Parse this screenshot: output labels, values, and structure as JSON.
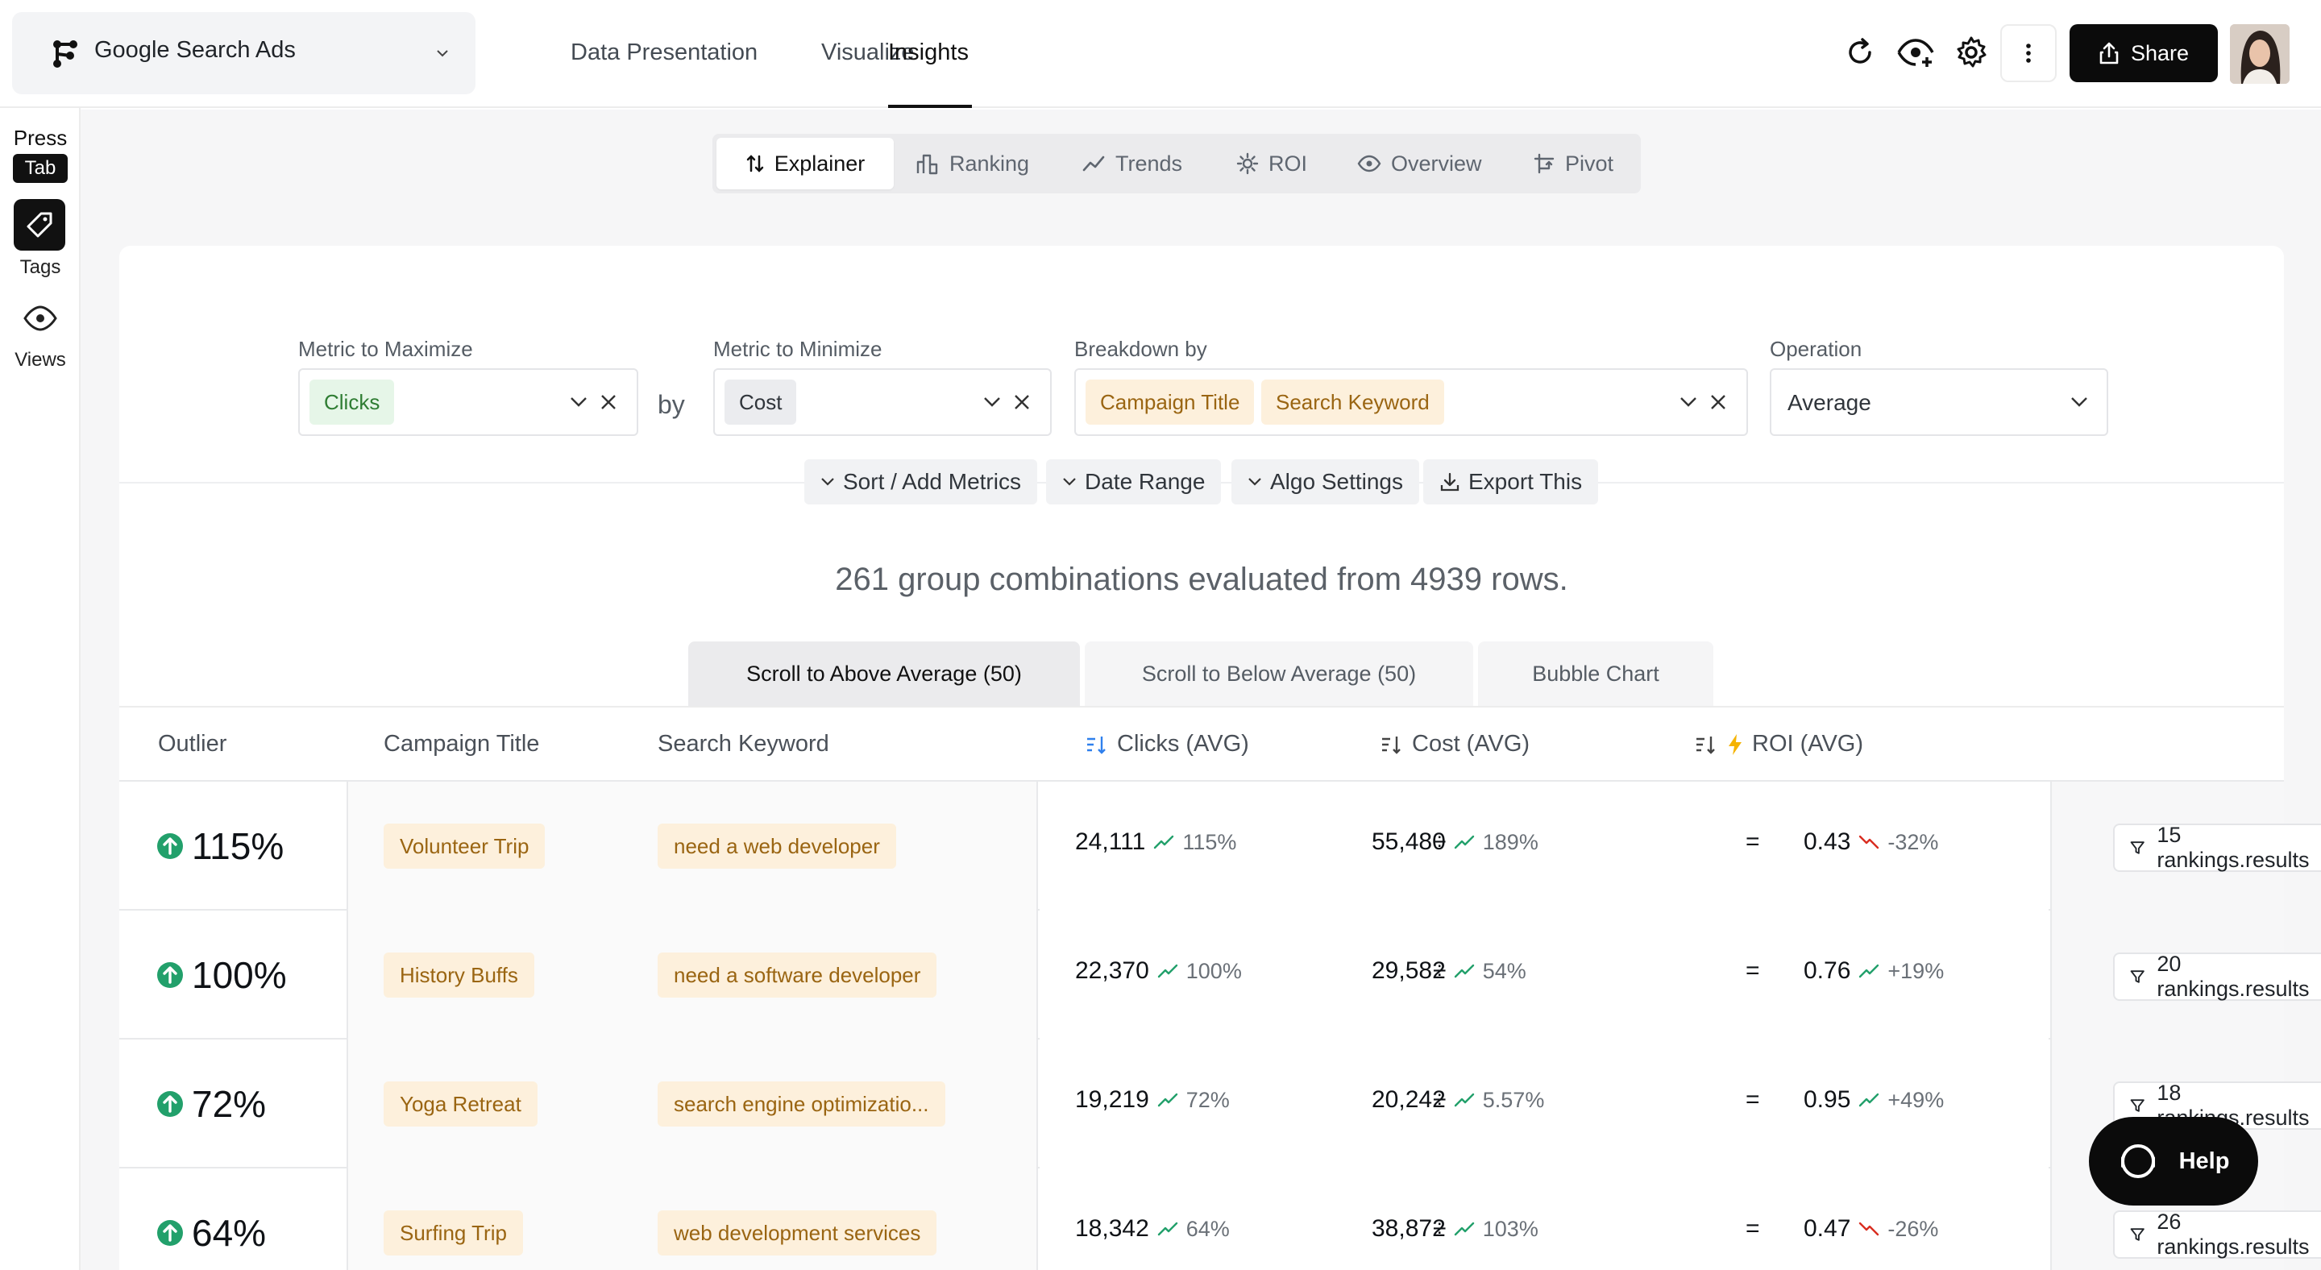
{
  "header": {
    "app_name": "Google Search Ads",
    "nav": [
      "Data Presentation",
      "Visualize",
      "Insights"
    ],
    "active_nav": "Insights",
    "share_label": "Share"
  },
  "rail": {
    "press_label": "Press",
    "tab_key": "Tab",
    "tags_label": "Tags",
    "views_label": "Views"
  },
  "subtabs": {
    "explainer": "Explainer",
    "ranking": "Ranking",
    "trends": "Trends",
    "roi": "ROI",
    "overview": "Overview",
    "pivot": "Pivot"
  },
  "filters": {
    "maximize_label": "Metric to Maximize",
    "maximize_value": "Clicks",
    "by_word": "by",
    "minimize_label": "Metric to Minimize",
    "minimize_value": "Cost",
    "breakdown_label": "Breakdown by",
    "breakdown_values": [
      "Campaign Title",
      "Search Keyword"
    ],
    "operation_label": "Operation",
    "operation_value": "Average"
  },
  "options": {
    "sort": "Sort / Add Metrics",
    "date": "Date Range",
    "algo": "Algo Settings",
    "export": "Export This"
  },
  "summary": "261 group combinations evaluated from 4939 rows.",
  "result_tabs": {
    "above": "Scroll to Above Average (50)",
    "below": "Scroll to Below Average (50)",
    "bubble": "Bubble Chart"
  },
  "table": {
    "headers": {
      "outlier": "Outlier",
      "campaign": "Campaign Title",
      "keyword": "Search Keyword",
      "clicks": "Clicks (AVG)",
      "cost": "Cost (AVG)",
      "roi": "ROI (AVG)"
    },
    "divide_symbol": "÷",
    "equals_symbol": "=",
    "rows": [
      {
        "outlier": "115%",
        "campaign": "Volunteer Trip",
        "keyword": "need a web developer",
        "clicks": "24,111",
        "clicks_pct": "115%",
        "cost": "55,480",
        "cost_pct": "189%",
        "roi": "0.43",
        "roi_pct": "-32%",
        "roi_trend": "down",
        "rankings": "15 rankings.results"
      },
      {
        "outlier": "100%",
        "campaign": "History Buffs",
        "keyword": "need a software developer",
        "clicks": "22,370",
        "clicks_pct": "100%",
        "cost": "29,582",
        "cost_pct": "54%",
        "roi": "0.76",
        "roi_pct": "+19%",
        "roi_trend": "up",
        "rankings": "20 rankings.results"
      },
      {
        "outlier": "72%",
        "campaign": "Yoga Retreat",
        "keyword": "search engine optimizatio...",
        "clicks": "19,219",
        "clicks_pct": "72%",
        "cost": "20,242",
        "cost_pct": "5.57%",
        "roi": "0.95",
        "roi_pct": "+49%",
        "roi_trend": "up",
        "rankings": "18 rankings.results"
      },
      {
        "outlier": "64%",
        "campaign": "Surfing Trip",
        "keyword": "web development services",
        "clicks": "18,342",
        "clicks_pct": "64%",
        "cost": "38,872",
        "cost_pct": "103%",
        "roi": "0.47",
        "roi_pct": "-26%",
        "roi_trend": "down",
        "rankings": "26 rankings.results"
      }
    ]
  },
  "help_label": "Help",
  "colors": {
    "up": "#22a06b",
    "down": "#d92d20",
    "chip_orange_bg": "#fdf0dc",
    "chip_orange_text": "#9a6512",
    "chip_green_bg": "#e6f6e8",
    "accent_blue": "#2f80ed"
  }
}
